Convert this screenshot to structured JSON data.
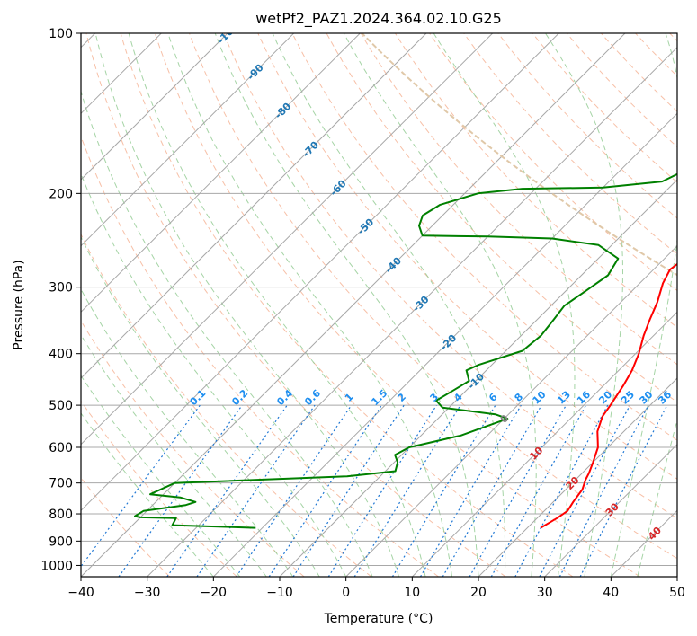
{
  "chart_data": {
    "type": "line",
    "chart_kind": "skew-T log-P diagram",
    "title": "wetPf2_PAZ1.2024.364.02.10.G25",
    "xlabel": "Temperature (°C)",
    "ylabel": "Pressure (hPa)",
    "xlim": [
      -40,
      50
    ],
    "ylim": [
      1050,
      100
    ],
    "y_scale": "log",
    "x_ticks": [
      -40,
      -30,
      -20,
      -10,
      0,
      10,
      20,
      30,
      40,
      50
    ],
    "y_ticks": [
      100,
      200,
      300,
      400,
      500,
      600,
      700,
      800,
      900,
      1000
    ],
    "grid": true,
    "colors": {
      "temperature": "#ff0000",
      "dewpoint": "#008000",
      "isotherm": "#a8a8a8",
      "dry_adiabat": "#f4a582",
      "moist_adiabat": "#8fc98f",
      "mixing_ratio": "#1f77d4",
      "mixing_label": "#1f8ff0",
      "isotherm_label": "#1f77b4",
      "warm_label": "#d62728",
      "zero_label": "#808080",
      "edge_curve": "#e0c8a8"
    },
    "series": [
      {
        "name": "Temperature",
        "points": [
          [
            22,
            850
          ],
          [
            23,
            815
          ],
          [
            23.5,
            790
          ],
          [
            23,
            760
          ],
          [
            22.5,
            720
          ],
          [
            21.5,
            690
          ],
          [
            21,
            670
          ],
          [
            20,
            640
          ],
          [
            18.5,
            600
          ],
          [
            16,
            560
          ],
          [
            14.5,
            525
          ],
          [
            14,
            500
          ],
          [
            13,
            460
          ],
          [
            12,
            430
          ],
          [
            10.5,
            400
          ],
          [
            8.5,
            370
          ],
          [
            7,
            345
          ],
          [
            5.5,
            320
          ],
          [
            3.5,
            295
          ],
          [
            2.5,
            278
          ],
          [
            3,
            265
          ],
          [
            5,
            250
          ],
          [
            8,
            238
          ],
          [
            10.5,
            225
          ],
          [
            11,
            212
          ],
          [
            10.5,
            200
          ],
          [
            9.5,
            190
          ],
          [
            9,
            180
          ],
          [
            9.5,
            170
          ],
          [
            10,
            160
          ],
          [
            9.5,
            150
          ],
          [
            9,
            140
          ],
          [
            8.5,
            130
          ],
          [
            8.5,
            120
          ],
          [
            9,
            112
          ],
          [
            10,
            105
          ],
          [
            11,
            100
          ]
        ]
      },
      {
        "name": "Dewpoint",
        "points": [
          [
            -21,
            850
          ],
          [
            -34,
            840
          ],
          [
            -34.5,
            815
          ],
          [
            -40,
            812
          ],
          [
            -41,
            808
          ],
          [
            -40.5,
            790
          ],
          [
            -35,
            770
          ],
          [
            -34,
            760
          ],
          [
            -37,
            745
          ],
          [
            -42,
            735
          ],
          [
            -40,
            700
          ],
          [
            -15,
            680
          ],
          [
            -8.5,
            665
          ],
          [
            -9.5,
            640
          ],
          [
            -11,
            620
          ],
          [
            -10,
            600
          ],
          [
            -4,
            570
          ],
          [
            0.5,
            530
          ],
          [
            -2,
            520
          ],
          [
            -11,
            505
          ],
          [
            -13,
            490
          ],
          [
            -12,
            470
          ],
          [
            -11,
            450
          ],
          [
            -13,
            430
          ],
          [
            -12,
            420
          ],
          [
            -7.5,
            395
          ],
          [
            -7,
            370
          ],
          [
            -7.5,
            345
          ],
          [
            -8,
            325
          ],
          [
            -7,
            305
          ],
          [
            -6,
            285
          ],
          [
            -7,
            265
          ],
          [
            -12,
            250
          ],
          [
            -20,
            243
          ],
          [
            -30,
            241
          ],
          [
            -40,
            240
          ],
          [
            -42,
            230
          ],
          [
            -43,
            220
          ],
          [
            -42,
            210
          ],
          [
            -38,
            200
          ],
          [
            -32,
            196
          ],
          [
            -20,
            195
          ],
          [
            -12,
            190
          ],
          [
            -10,
            180
          ],
          [
            -12,
            170
          ],
          [
            -12.5,
            162
          ],
          [
            -10.5,
            158
          ],
          [
            -7,
            150
          ],
          [
            -5,
            140
          ],
          [
            -4,
            130
          ],
          [
            -2,
            120
          ],
          [
            0,
            110
          ],
          [
            1,
            103
          ],
          [
            2,
            100
          ]
        ]
      }
    ],
    "isotherm_labels": [
      "-100",
      "-90",
      "-80",
      "-70",
      "-60",
      "-50",
      "-40",
      "-30",
      "-20",
      "-10",
      "0",
      "10",
      "20",
      "30",
      "40"
    ],
    "mixing_ratio_labels": [
      "0.1",
      "0.2",
      "0.4",
      "0.6",
      "1",
      "1.5",
      "2",
      "3",
      "4",
      "6",
      "8",
      "10",
      "13",
      "16",
      "20",
      "25",
      "30",
      "36"
    ]
  }
}
